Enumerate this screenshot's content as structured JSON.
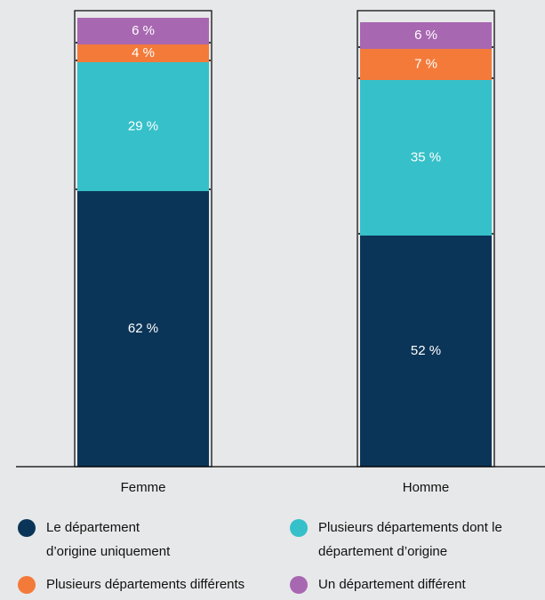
{
  "chart_data": {
    "type": "stacked_bar",
    "categories": [
      "Femme",
      "Homme"
    ],
    "ylim": [
      0,
      102
    ],
    "series": [
      {
        "name": "Le département d’origine uniquement",
        "color": "#0b3558",
        "values": [
          62,
          52
        ],
        "value_labels": [
          "62 %",
          "52 %"
        ]
      },
      {
        "name": "Plusieurs départements dont le département d’origine",
        "color": "#36c0c9",
        "values": [
          29,
          35
        ],
        "value_labels": [
          "29 %",
          "35 %"
        ]
      },
      {
        "name": "Plusieurs départements différents",
        "color": "#f47a3a",
        "values": [
          4,
          7
        ],
        "value_labels": [
          "4 %",
          "7 %"
        ]
      },
      {
        "name": "Un département différent",
        "color": "#a867b1",
        "values": [
          6,
          6
        ],
        "value_labels": [
          "6 %",
          "6 %"
        ]
      }
    ]
  }
}
